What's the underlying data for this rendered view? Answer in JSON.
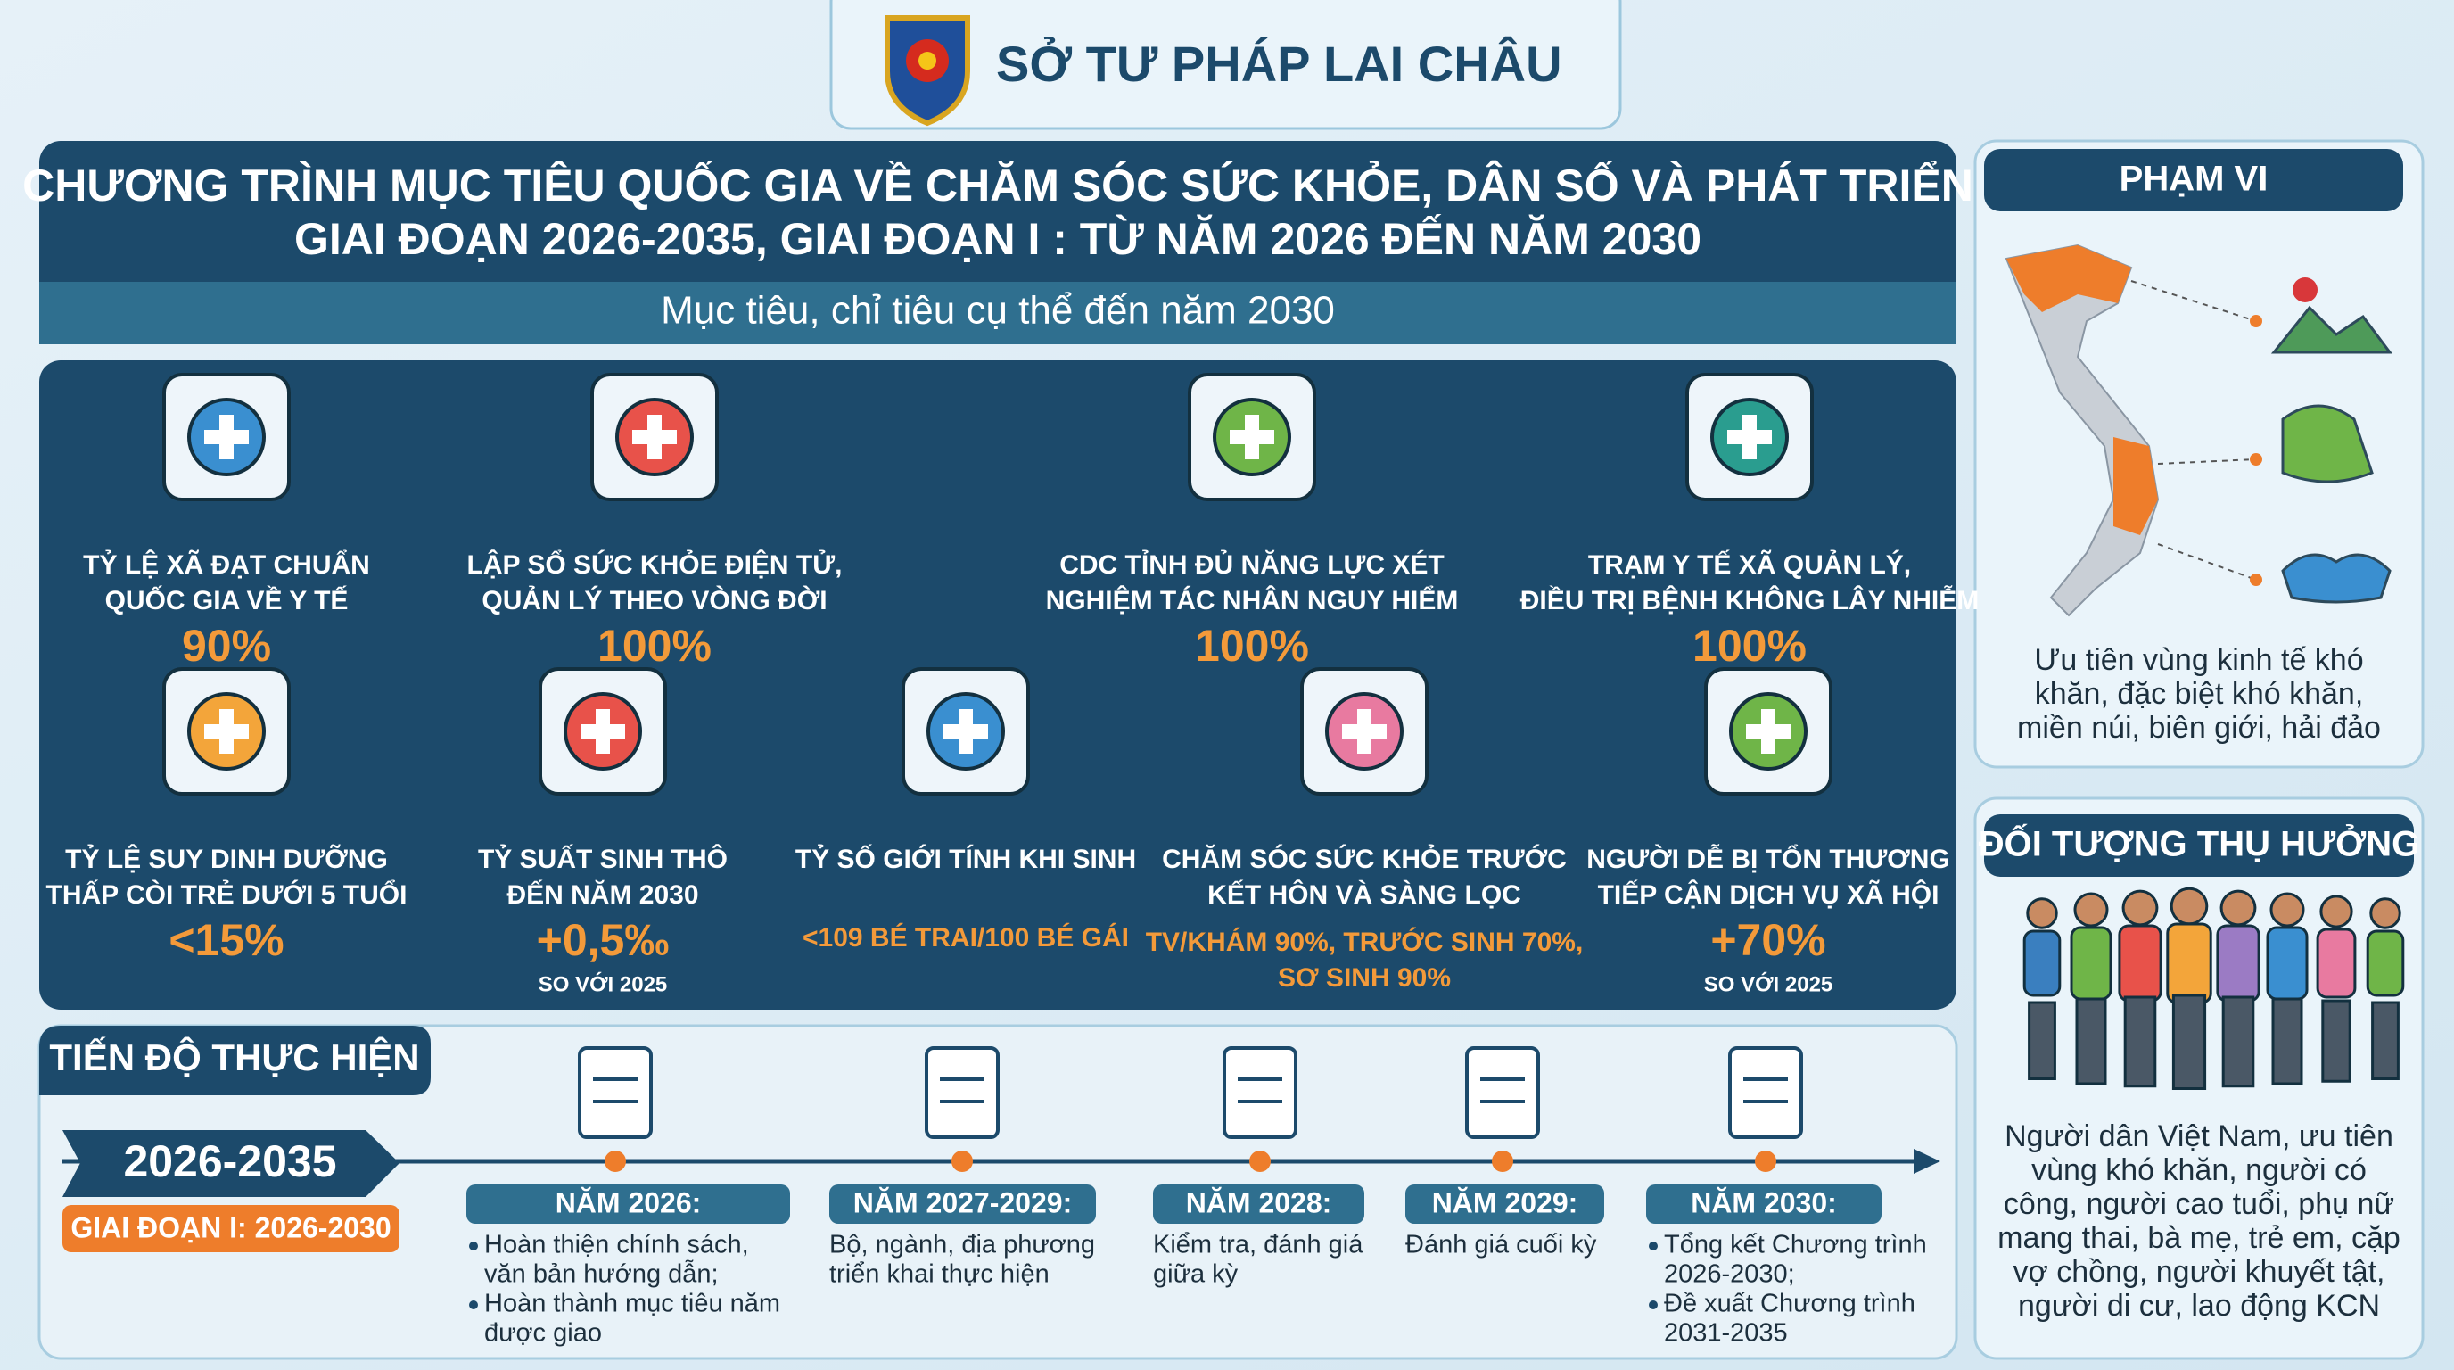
{
  "header": {
    "title": "SỞ TƯ PHÁP LAI CHÂU"
  },
  "program": {
    "title": [
      "CHƯƠNG TRÌNH MỤC TIÊU QUỐC GIA VỀ CHĂM SÓC SỨC KHỎE, DÂN SỐ VÀ PHÁT TRIỂN",
      "GIAI ĐOẠN 2026-2035, GIAI ĐOẠN I : TỪ NĂM 2026 ĐẾN NĂM 2030"
    ],
    "subtitle": "Mục tiêu, chỉ tiêu cụ thể đến năm 2030"
  },
  "indicators": [
    {
      "label": [
        "TỶ LỆ XÃ ĐẠT CHUẨN",
        "QUỐC GIA VỀ Y TẾ"
      ],
      "value": [
        "90%"
      ]
    },
    {
      "label": [
        "LẬP SỔ SỨC KHỎE ĐIỆN TỬ,",
        "QUẢN LÝ THEO VÒNG ĐỜI"
      ],
      "value": [
        "100%"
      ]
    },
    {
      "label": [
        "CDC TỈNH ĐỦ NĂNG LỰC XÉT",
        "NGHIỆM TÁC NHÂN NGUY HIỂM"
      ],
      "value": [
        "100%"
      ]
    },
    {
      "label": [
        "TRẠM Y TẾ XÃ QUẢN LÝ,",
        "ĐIỀU TRỊ BỆNH KHÔNG LÂY NHIỄM"
      ],
      "value": [
        "100%"
      ]
    },
    {
      "label": [
        "TỶ LỆ SUY DINH DƯỠNG",
        "THẤP CÒI TRẺ DƯỚI 5 TUỔI"
      ],
      "value": [
        "<15%"
      ]
    },
    {
      "label": [
        "TỶ SUẤT SINH THÔ",
        "ĐẾN NĂM 2030"
      ],
      "value": [
        "+0,5‰"
      ],
      "note": "SO VỚI 2025"
    },
    {
      "label": [
        "TỶ SỐ GIỚI TÍNH KHI SINH"
      ],
      "value": [
        "<109 BÉ TRAI/100 BÉ GÁI"
      ]
    },
    {
      "label": [
        "CHĂM SÓC SỨC KHỎE TRƯỚC",
        "KẾT HÔN VÀ SÀNG LỌC"
      ],
      "value": [
        "TV/KHÁM 90%, TRƯỚC SINH 70%,",
        "SƠ SINH 90%"
      ]
    },
    {
      "label": [
        "NGƯỜI DỄ BỊ TỔN THƯƠNG",
        "TIẾP CẬN DỊCH VỤ XÃ HỘI"
      ],
      "value": [
        "+70%"
      ],
      "note": "SO VỚI 2025"
    }
  ],
  "progress": {
    "title": "TIẾN ĐỘ THỰC HIỆN",
    "period": "2026-2035",
    "phase": "GIAI ĐOẠN I: 2026-2030",
    "milestones": [
      {
        "year": "NĂM 2026:",
        "items": [
          [
            "Hoàn thiện chính sách,",
            "văn bản hướng dẫn;"
          ],
          [
            "Hoàn thành mục tiêu năm",
            "được giao"
          ]
        ]
      },
      {
        "year": "NĂM 2027-2029:",
        "items": [
          [
            "Bộ, ngành, địa phương",
            "triển khai thực hiện"
          ]
        ]
      },
      {
        "year": "NĂM 2028:",
        "items": [
          [
            "Kiểm tra, đánh giá",
            "giữa kỳ"
          ]
        ]
      },
      {
        "year": "NĂM 2029:",
        "items": [
          [
            "Đánh giá cuối kỳ"
          ]
        ]
      },
      {
        "year": "NĂM 2030:",
        "items": [
          [
            "Tổng kết Chương trình",
            "2026-2030;"
          ],
          [
            "Đề xuất Chương trình",
            "2031-2035"
          ]
        ]
      }
    ]
  },
  "scope": {
    "title": "PHẠM VI",
    "text": [
      "Ưu tiên vùng kinh tế khó",
      "khăn, đặc biệt khó khăn,",
      "miền núi, biên giới, hải đảo"
    ]
  },
  "beneficiaries": {
    "title": "ĐỐI TƯỢNG THỤ HƯỞNG",
    "text": [
      "Người dân Việt Nam, ưu tiên",
      "vùng khó khăn, người có",
      "công, người cao tuổi, phụ nữ",
      "mang thai, bà mẹ, trẻ em, cặp",
      "vợ chồng, người khuyết tật,",
      "người di cư, lao động KCN"
    ]
  }
}
